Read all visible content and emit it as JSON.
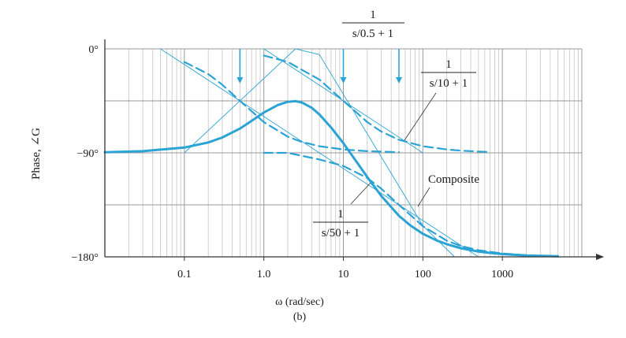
{
  "chart_data": {
    "type": "line",
    "ylabel": "Phase, ∠G",
    "xlabel": "ω (rad/sec)",
    "caption": "(b)",
    "x_scale": "log",
    "xlim": [
      0.01,
      10000
    ],
    "ylim": [
      -180,
      0
    ],
    "grid": true,
    "x_ticks": [
      {
        "value": 0.1,
        "label": "0.1"
      },
      {
        "value": 1,
        "label": "1.0"
      },
      {
        "value": 10,
        "label": "10"
      },
      {
        "value": 100,
        "label": "100"
      },
      {
        "value": 1000,
        "label": "1000"
      }
    ],
    "y_ticks": [
      {
        "value": 0,
        "label": "0°"
      },
      {
        "value": -90,
        "label": "−90°"
      },
      {
        "value": -180,
        "label": "−180°"
      }
    ],
    "annotations": [
      {
        "name": "term-1",
        "numerator": "1",
        "denominator": "s/0.5 + 1",
        "pole": 0.5
      },
      {
        "name": "term-2",
        "numerator": "1",
        "denominator": "s/10 + 1",
        "pole": 10
      },
      {
        "name": "term-3",
        "numerator": "1",
        "denominator": "s/50 + 1",
        "pole": 50
      },
      {
        "name": "composite",
        "label": "Composite"
      }
    ],
    "series": [
      {
        "name": "Composite",
        "style": "solid-thick",
        "x": [
          0.01,
          0.03,
          0.1,
          0.2,
          0.3,
          0.5,
          0.7,
          1,
          1.5,
          2,
          2.5,
          3,
          4,
          5,
          7,
          10,
          15,
          20,
          30,
          50,
          70,
          100,
          150,
          200,
          300,
          500,
          700,
          1000,
          2000,
          5000
        ],
        "values": [
          -89.5,
          -88.6,
          -85.4,
          -81,
          -76.7,
          -69,
          -62.4,
          -55.1,
          -48.6,
          -45.8,
          -45.3,
          -46.4,
          -51,
          -56.7,
          -68,
          -81.6,
          -98.8,
          -111,
          -127.2,
          -144.5,
          -152.9,
          -160,
          -165.9,
          -169,
          -172.5,
          -175.4,
          -176.6,
          -177.6,
          -178.8,
          -179.5
        ]
      },
      {
        "name": "s/0.5 + 1",
        "style": "dashed",
        "x": [
          0.1,
          0.2,
          0.3,
          0.5,
          1,
          2,
          3,
          5,
          10,
          20,
          50
        ],
        "values": [
          -11.3,
          -21.8,
          -31,
          -45,
          -63.4,
          -76,
          -80.5,
          -84.3,
          -87.1,
          -88.6,
          -89.4
        ]
      },
      {
        "name": "s/10 + 1",
        "style": "dashed",
        "x": [
          1,
          2,
          5,
          10,
          20,
          30,
          50,
          100,
          200,
          300,
          500,
          700
        ],
        "values": [
          -5.7,
          -11.3,
          -26.6,
          -45,
          -63.4,
          -71.6,
          -78.7,
          -84.3,
          -87.1,
          -88.1,
          -88.9,
          -89.2
        ]
      },
      {
        "name": "s/50 + 1",
        "style": "dashed",
        "x": [
          1,
          2,
          5,
          10,
          20,
          30,
          50,
          100,
          200,
          300,
          500,
          1000,
          2000
        ],
        "values": [
          -90,
          -90,
          -95.7,
          -101.3,
          -111.8,
          -121,
          -135,
          -153.4,
          -166,
          -170.5,
          -174.3,
          -177.1,
          -178.6
        ]
      },
      {
        "name": "asymptote-composite",
        "style": "thin-solid",
        "x": [
          0.1,
          2.5,
          5,
          100,
          250
        ],
        "values": [
          -90,
          0,
          -5,
          -153,
          -180
        ]
      },
      {
        "name": "asymptote-term-1",
        "style": "thin-solid",
        "x": [
          0.05,
          5
        ],
        "values": [
          0,
          -90
        ]
      },
      {
        "name": "asymptote-term-2",
        "style": "thin-solid",
        "x": [
          1,
          100
        ],
        "values": [
          0,
          -90
        ]
      },
      {
        "name": "asymptote-term-3",
        "style": "thin-solid",
        "x": [
          5,
          500
        ],
        "values": [
          -90,
          -180
        ]
      }
    ],
    "arrows": [
      {
        "x": 0.5,
        "from": 0,
        "to": -30
      },
      {
        "x": 10,
        "from": 0,
        "to": -30
      },
      {
        "x": 50,
        "from": 0,
        "to": -30
      }
    ]
  }
}
